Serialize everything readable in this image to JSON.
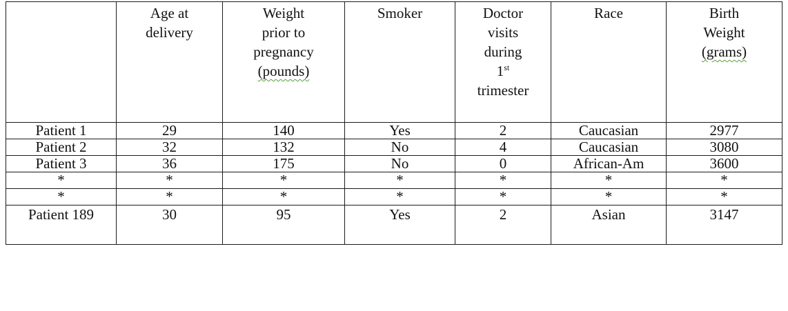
{
  "table": {
    "headers": [
      {
        "lines": [
          ""
        ]
      },
      {
        "lines": [
          "Age at",
          "delivery"
        ]
      },
      {
        "lines": [
          "Weight",
          "prior to",
          "pregnancy",
          "(pounds)"
        ],
        "squiggle_last": true
      },
      {
        "lines": [
          "Smoker"
        ]
      },
      {
        "lines": [
          "Doctor",
          "visits",
          "during",
          "1st",
          "trimester"
        ],
        "sup_line": 3
      },
      {
        "lines": [
          "Race"
        ]
      },
      {
        "lines": [
          "Birth",
          "Weight",
          "(grams)"
        ],
        "squiggle_last": true
      }
    ],
    "rows": [
      [
        "Patient 1",
        "29",
        "140",
        "Yes",
        "2",
        "Caucasian",
        "2977"
      ],
      [
        "Patient 2",
        "32",
        "132",
        "No",
        "4",
        "Caucasian",
        "3080"
      ],
      [
        "Patient 3",
        "36",
        "175",
        "No",
        "0",
        "African-Am",
        "3600"
      ],
      [
        "*",
        "*",
        "*",
        "*",
        "*",
        "*",
        "*"
      ],
      [
        "*",
        "*",
        "*",
        "*",
        "*",
        "*",
        "*"
      ],
      [
        "Patient 189",
        "30",
        "95",
        "Yes",
        "2",
        "Asian",
        "3147"
      ]
    ]
  }
}
